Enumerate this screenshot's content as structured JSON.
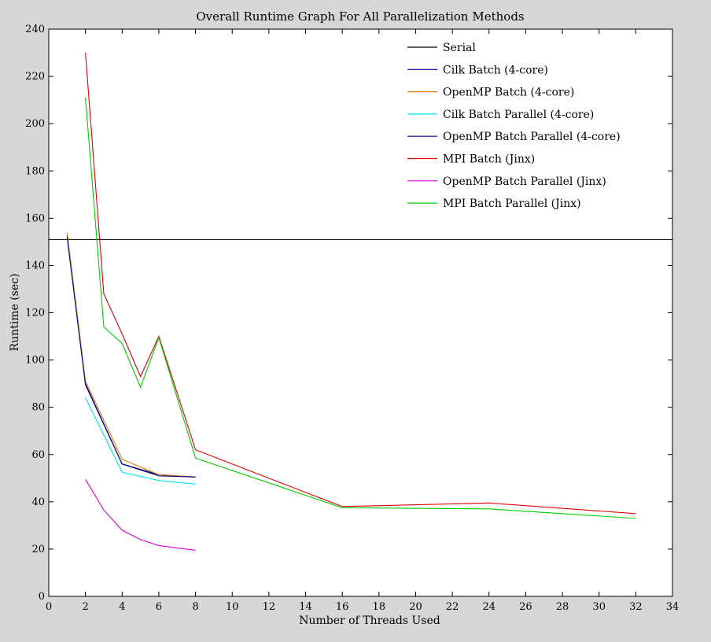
{
  "chart_data": {
    "type": "line",
    "title": "Overall Runtime Graph For All Parallelization Methods",
    "xlabel": "Number of Threads Used",
    "ylabel": "Runtime (sec)",
    "xlim": [
      0,
      34
    ],
    "ylim": [
      0,
      240
    ],
    "xticks": [
      0,
      2,
      4,
      6,
      8,
      10,
      12,
      14,
      16,
      18,
      20,
      22,
      24,
      26,
      28,
      30,
      32,
      34
    ],
    "yticks": [
      0,
      20,
      40,
      60,
      80,
      100,
      120,
      140,
      160,
      180,
      200,
      220,
      240
    ],
    "grid": false,
    "legend_position": "top-right",
    "series": [
      {
        "name": "Serial",
        "color": "#000000",
        "x": [
          0,
          34
        ],
        "y": [
          151,
          151
        ]
      },
      {
        "name": "Cilk Batch (4-core)",
        "color": "#00008b",
        "x": [
          1,
          2,
          4,
          6,
          8
        ],
        "y": [
          153,
          90,
          56,
          51.5,
          50.5
        ]
      },
      {
        "name": "OpenMP Batch (4-core)",
        "color": "#e08000",
        "x": [
          1,
          2,
          4,
          6,
          8
        ],
        "y": [
          154,
          91,
          58,
          51.5,
          50.5
        ]
      },
      {
        "name": "Cilk Batch Parallel (4-core)",
        "color": "#00e5ee",
        "x": [
          2,
          4,
          6,
          8
        ],
        "y": [
          84,
          52.5,
          49,
          47.5
        ]
      },
      {
        "name": "OpenMP Batch Parallel (4-core)",
        "color": "#000080",
        "x": [
          1,
          2,
          4,
          6,
          8
        ],
        "y": [
          152,
          89.5,
          56,
          51,
          50.5
        ]
      },
      {
        "name": "MPI Batch (Jinx)",
        "color": "#e00000",
        "x": [
          2,
          3,
          4,
          5,
          6,
          8,
          16,
          24,
          32
        ],
        "y": [
          230,
          128,
          111,
          93,
          110,
          62,
          38,
          39.5,
          35
        ]
      },
      {
        "name": "OpenMP Batch Parallel (Jinx)",
        "color": "#e000e0",
        "x": [
          2,
          3,
          4,
          5,
          6,
          8
        ],
        "y": [
          49.5,
          36.5,
          28,
          24,
          21.5,
          19.5
        ]
      },
      {
        "name": "MPI Batch Parallel (Jinx)",
        "color": "#00cc00",
        "x": [
          2,
          3,
          4,
          5,
          6,
          8,
          16,
          24,
          32
        ],
        "y": [
          211,
          114,
          107,
          88.5,
          109.5,
          58.5,
          37.5,
          37,
          33
        ]
      }
    ]
  }
}
